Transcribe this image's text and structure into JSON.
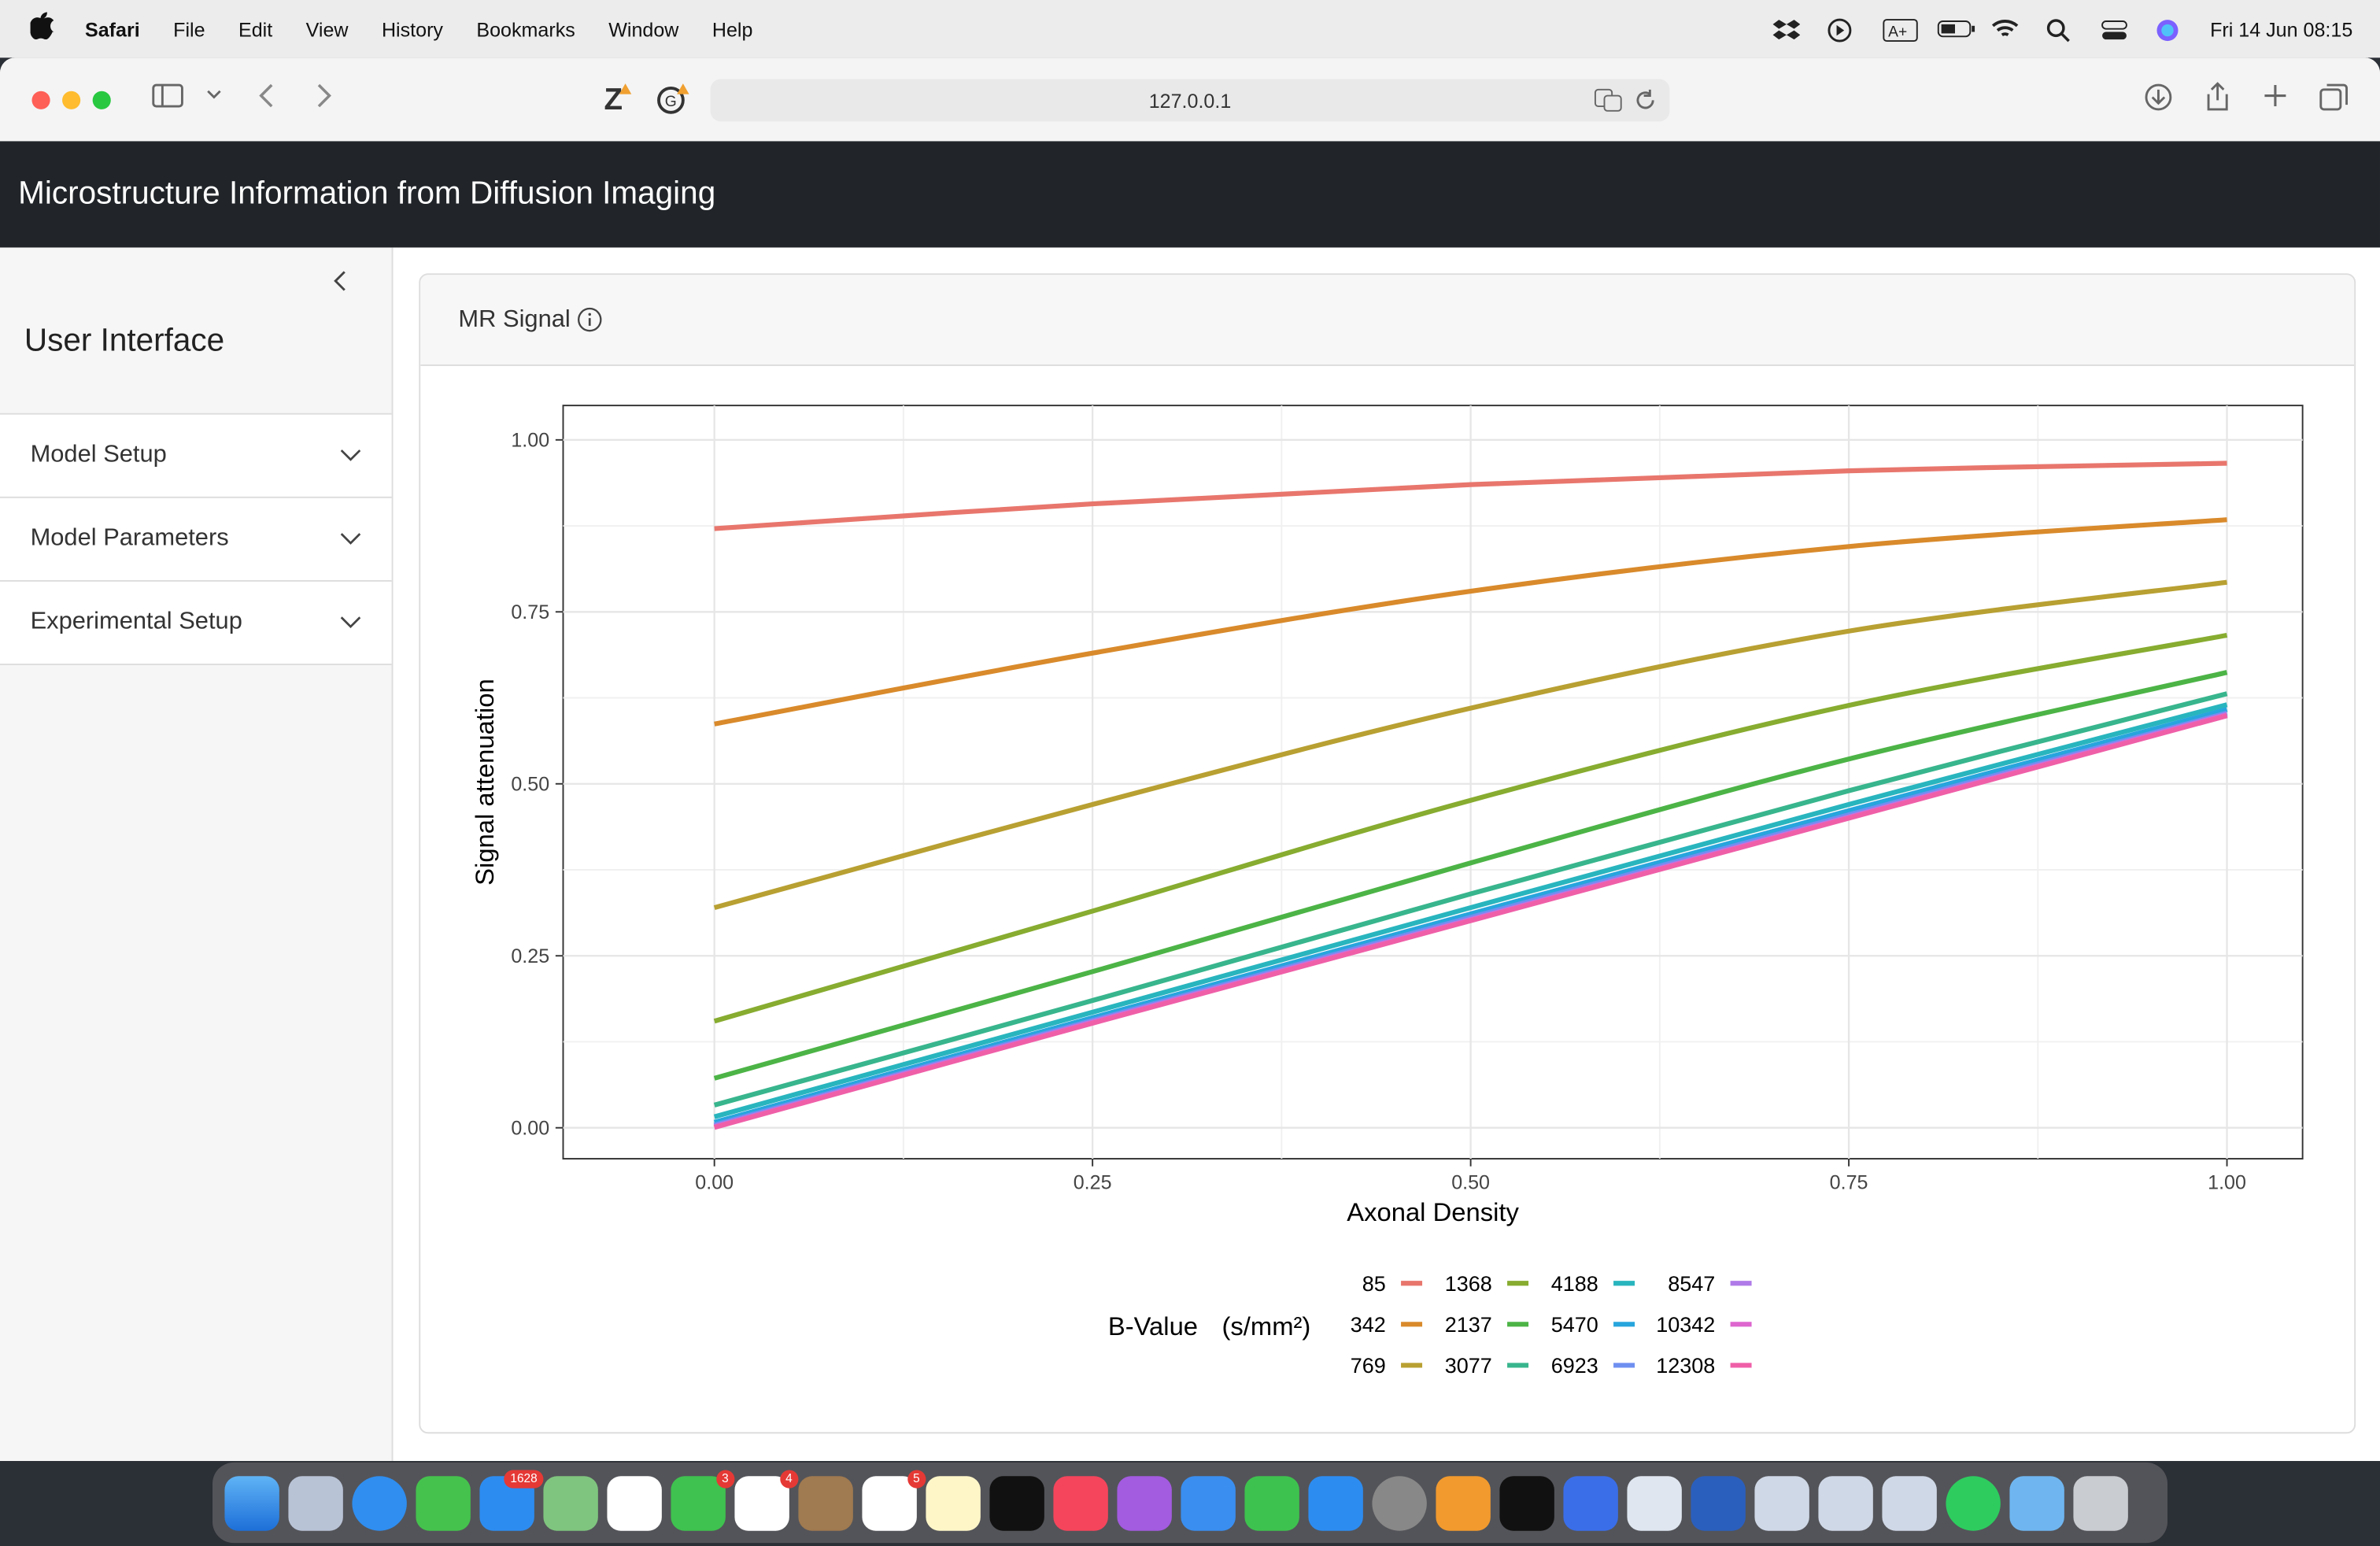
{
  "menubar": {
    "app": "Safari",
    "items": [
      "File",
      "Edit",
      "View",
      "History",
      "Bookmarks",
      "Window",
      "Help"
    ],
    "datetime": "Fri 14 Jun  08:15"
  },
  "browser": {
    "url": "127.0.0.1"
  },
  "app": {
    "title": "Microstructure Information from Diffusion Imaging"
  },
  "sidebar": {
    "title": "User Interface",
    "items": [
      {
        "label": "Model Setup"
      },
      {
        "label": "Model Parameters"
      },
      {
        "label": "Experimental Setup"
      }
    ]
  },
  "card": {
    "title": "MR Signal"
  },
  "chart_data": {
    "type": "line",
    "xlabel": "Axonal Density",
    "ylabel": "Signal attenuation",
    "xlim": [
      -0.1,
      1.05
    ],
    "ylim": [
      -0.045,
      1.05
    ],
    "xticks": [
      "0.00",
      "0.25",
      "0.50",
      "0.75",
      "1.00"
    ],
    "yticks": [
      "0.00",
      "0.25",
      "0.50",
      "0.75",
      "1.00"
    ],
    "grid": true,
    "legend_title": "B-Value",
    "legend_unit": "(s/mm²)",
    "legend_position": "bottom",
    "x": [
      0,
      0.25,
      0.5,
      0.75,
      1.0
    ],
    "series": [
      {
        "name": "85",
        "color": "#e8766d",
        "values": [
          0.871,
          0.907,
          0.935,
          0.955,
          0.966
        ]
      },
      {
        "name": "342",
        "color": "#d98a2b",
        "values": [
          0.587,
          0.69,
          0.78,
          0.845,
          0.884
        ]
      },
      {
        "name": "769",
        "color": "#b8a032",
        "values": [
          0.32,
          0.47,
          0.61,
          0.722,
          0.793
        ]
      },
      {
        "name": "1368",
        "color": "#87ac30",
        "values": [
          0.155,
          0.315,
          0.476,
          0.614,
          0.716
        ]
      },
      {
        "name": "2137",
        "color": "#4cb446",
        "values": [
          0.072,
          0.227,
          0.385,
          0.536,
          0.662
        ]
      },
      {
        "name": "3077",
        "color": "#38b58d",
        "values": [
          0.033,
          0.185,
          0.34,
          0.49,
          0.631
        ]
      },
      {
        "name": "4188",
        "color": "#29b5be",
        "values": [
          0.016,
          0.168,
          0.32,
          0.47,
          0.615
        ]
      },
      {
        "name": "5470",
        "color": "#27a5dd",
        "values": [
          0.008,
          0.16,
          0.311,
          0.461,
          0.608
        ]
      },
      {
        "name": "6923",
        "color": "#6f8ff0",
        "values": [
          0.004,
          0.156,
          0.306,
          0.455,
          0.603
        ]
      },
      {
        "name": "8547",
        "color": "#b07be8",
        "values": [
          0.002,
          0.154,
          0.303,
          0.452,
          0.601
        ]
      },
      {
        "name": "10342",
        "color": "#dd66cf",
        "values": [
          0.001,
          0.153,
          0.302,
          0.451,
          0.6
        ]
      },
      {
        "name": "12308",
        "color": "#ef5fa8",
        "values": [
          0.0005,
          0.152,
          0.301,
          0.45,
          0.599
        ]
      }
    ]
  }
}
